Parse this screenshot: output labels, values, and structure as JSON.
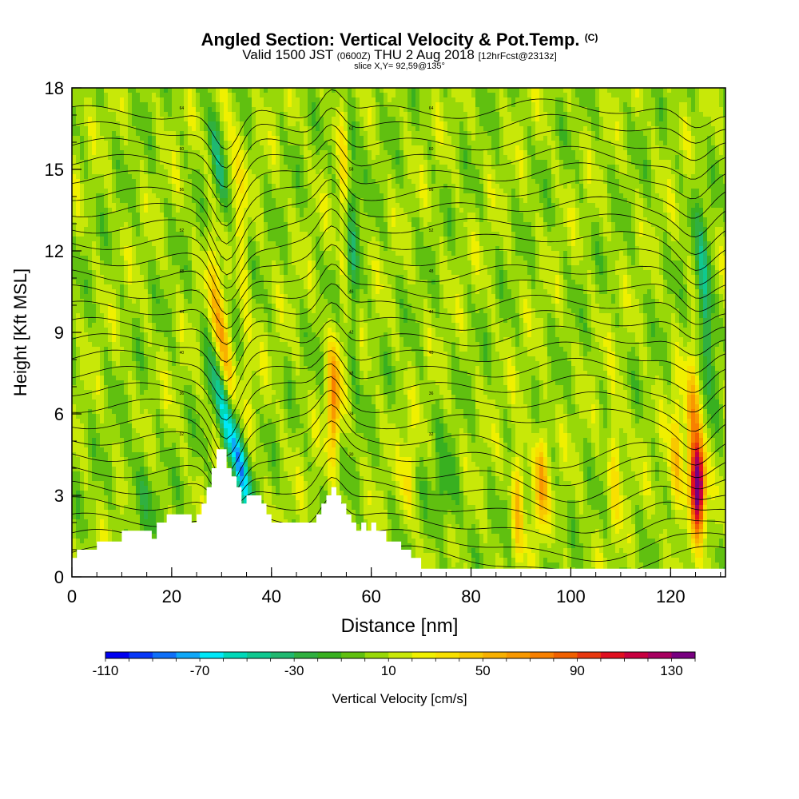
{
  "title": {
    "main": "Angled Section: Vertical Velocity & Pot.Temp.",
    "main_unit": "(C)",
    "valid_prefix": "Valid 1500 JST",
    "valid_z": "(0600Z)",
    "valid_date": "THU 2 Aug 2018",
    "forecast": "[12hrFcst@2313z]",
    "slice": "slice X,Y= 92,59@135°"
  },
  "chart_data": {
    "type": "heatmap",
    "xlabel": "Distance [nm]",
    "ylabel": "Height [Kft MSL]",
    "xlim": [
      0,
      131
    ],
    "ylim": [
      0,
      18
    ],
    "x_ticks": [
      "0",
      "20",
      "40",
      "60",
      "80",
      "100",
      "120"
    ],
    "y_ticks": [
      "0",
      "3",
      "6",
      "9",
      "12",
      "15",
      "18"
    ],
    "colorbar": {
      "label": "Vertical Velocity [cm/s]",
      "tick_labels": [
        "-110",
        "-70",
        "-30",
        "10",
        "50",
        "90",
        "130"
      ],
      "levels": [
        -110,
        -100,
        -90,
        -80,
        -70,
        -60,
        -50,
        -40,
        -30,
        -20,
        -10,
        0,
        10,
        20,
        30,
        40,
        50,
        60,
        70,
        80,
        90,
        100,
        110,
        120,
        130,
        140
      ],
      "colors": [
        "#0000f0",
        "#0838f8",
        "#1070f8",
        "#10a8f8",
        "#00e8f8",
        "#00d8b8",
        "#10c890",
        "#20b870",
        "#30b040",
        "#38b020",
        "#60c010",
        "#98d808",
        "#c8e808",
        "#f0f000",
        "#f8e000",
        "#f8c800",
        "#f8b000",
        "#f89800",
        "#f88000",
        "#f06000",
        "#e83810",
        "#e01020",
        "#c80040",
        "#a80060",
        "#780080"
      ]
    },
    "terrain_kft": {
      "x": [
        0,
        1,
        5,
        10,
        15,
        16,
        17,
        19,
        21,
        23,
        24,
        25,
        26,
        27,
        28,
        29,
        30,
        31,
        32,
        33,
        34,
        35,
        37,
        38,
        39,
        40,
        41,
        42,
        43,
        44,
        45,
        46,
        47,
        48,
        49,
        50,
        51,
        52,
        53,
        54,
        55,
        56,
        57,
        58,
        59,
        60,
        61,
        62,
        63,
        64,
        65,
        66,
        67,
        68,
        69,
        70,
        71,
        72,
        131
      ],
      "y": [
        0.7,
        1.0,
        1.3,
        1.7,
        1.7,
        1.4,
        2.0,
        2.3,
        2.3,
        2.3,
        2.0,
        2.3,
        2.7,
        3.3,
        4.0,
        4.7,
        4.7,
        4.0,
        3.7,
        3.3,
        2.7,
        3.0,
        3.0,
        2.7,
        2.3,
        2.0,
        2.0,
        2.0,
        2.0,
        2.0,
        2.0,
        2.0,
        2.0,
        2.0,
        2.3,
        2.7,
        3.0,
        3.3,
        3.0,
        2.7,
        2.3,
        2.0,
        1.7,
        2.0,
        1.7,
        2.0,
        1.7,
        1.7,
        1.3,
        1.3,
        1.3,
        1.0,
        1.0,
        0.7,
        0.7,
        0.3,
        0.3,
        0.3,
        0.3
      ]
    },
    "theta_contour_labels": [
      "64",
      "62",
      "60",
      "58",
      "56",
      "54",
      "52",
      "50",
      "48",
      "46",
      "44",
      "42",
      "40",
      "38",
      "36",
      "34",
      "32",
      "30"
    ]
  }
}
